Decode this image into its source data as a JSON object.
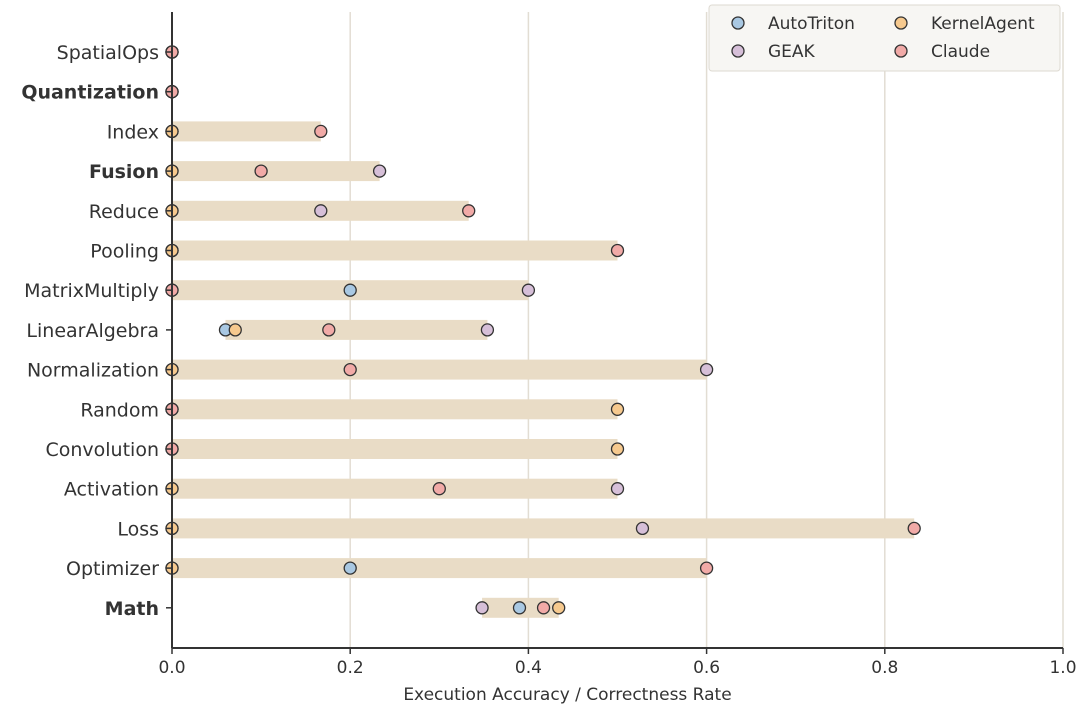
{
  "chart_data": {
    "type": "scatter",
    "orientation": "horizontal-dumbbell",
    "xlabel": "Execution Accuracy / Correctness Rate",
    "xlim": [
      0.0,
      1.0
    ],
    "xticks": [
      "0.0",
      "0.2",
      "0.4",
      "0.6",
      "0.8",
      "1.0"
    ],
    "grid": "vertical",
    "legend_placement": "top-right",
    "categories": [
      "SpatialOps",
      "Quantization",
      "Index",
      "Fusion",
      "Reduce",
      "Pooling",
      "MatrixMultiply",
      "LinearAlgebra",
      "Normalization",
      "Random",
      "Convolution",
      "Activation",
      "Loss",
      "Optimizer",
      "Math"
    ],
    "bold_categories": [
      "Quantization",
      "Fusion",
      "Math"
    ],
    "range_color": "#e9dcc6",
    "series": [
      {
        "name": "AutoTriton",
        "color": "#a9c8e2",
        "values": [
          0,
          0,
          0,
          0,
          0,
          0,
          0.2,
          0.06,
          0,
          0,
          0,
          0,
          0,
          0.2,
          0.39
        ]
      },
      {
        "name": "GEAK",
        "color": "#d6bfd8",
        "values": [
          0,
          0,
          0,
          0.233,
          0.167,
          0,
          0.4,
          0.354,
          0.6,
          0,
          0,
          0.5,
          0.528,
          0,
          0.348
        ]
      },
      {
        "name": "KernelAgent",
        "color": "#f6c98e",
        "values": [
          0,
          0,
          0,
          0,
          0,
          0,
          0,
          0.071,
          0,
          0.5,
          0.5,
          0,
          0,
          0,
          0.434
        ]
      },
      {
        "name": "Claude",
        "color": "#f1aaa7",
        "values": [
          0,
          0,
          0.167,
          0.1,
          0.333,
          0.5,
          0,
          0.176,
          0.2,
          0,
          0,
          0.3,
          0.833,
          0.6,
          0.417
        ]
      }
    ]
  }
}
